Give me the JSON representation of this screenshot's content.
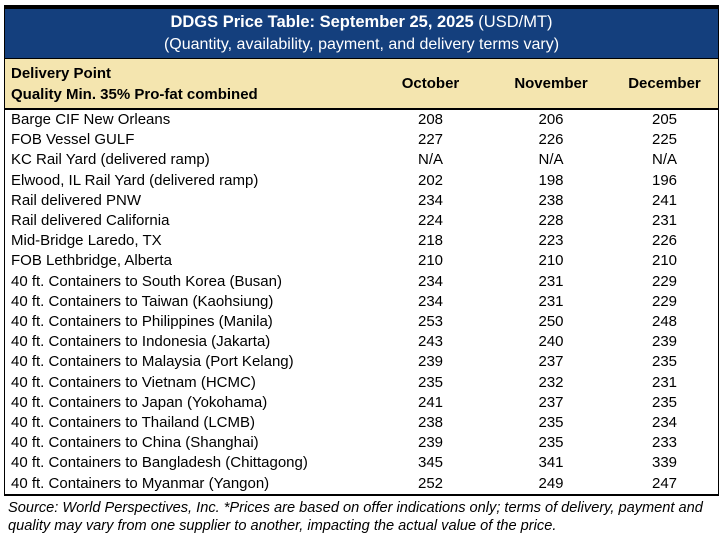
{
  "header": {
    "title_bold": "DDGS Price Table: September 25, 2025",
    "title_regular": " (USD/MT)",
    "subtitle": "(Quantity, availability, payment, and delivery terms vary)"
  },
  "table": {
    "row_header_line1": "Delivery Point",
    "row_header_line2": "Quality Min. 35% Pro-fat combined",
    "columns": [
      "October",
      "November",
      "December"
    ],
    "rows": [
      {
        "label": "Barge CIF New Orleans",
        "values": [
          "208",
          "206",
          "205"
        ]
      },
      {
        "label": "FOB Vessel GULF",
        "values": [
          "227",
          "226",
          "225"
        ]
      },
      {
        "label": "KC Rail Yard (delivered ramp)",
        "values": [
          "N/A",
          "N/A",
          "N/A"
        ]
      },
      {
        "label": "Elwood, IL Rail Yard (delivered ramp)",
        "values": [
          "202",
          "198",
          "196"
        ]
      },
      {
        "label": "Rail delivered PNW",
        "values": [
          "234",
          "238",
          "241"
        ]
      },
      {
        "label": "Rail delivered California",
        "values": [
          "224",
          "228",
          "231"
        ]
      },
      {
        "label": "Mid-Bridge Laredo, TX",
        "values": [
          "218",
          "223",
          "226"
        ]
      },
      {
        "label": "FOB Lethbridge, Alberta",
        "values": [
          "210",
          "210",
          "210"
        ]
      },
      {
        "label": "40 ft. Containers to South Korea (Busan)",
        "values": [
          "234",
          "231",
          "229"
        ]
      },
      {
        "label": "40 ft. Containers to Taiwan (Kaohsiung)",
        "values": [
          "234",
          "231",
          "229"
        ]
      },
      {
        "label": "40 ft. Containers to Philippines (Manila)",
        "values": [
          "253",
          "250",
          "248"
        ]
      },
      {
        "label": "40 ft. Containers to Indonesia (Jakarta)",
        "values": [
          "243",
          "240",
          "239"
        ]
      },
      {
        "label": "40 ft. Containers to Malaysia (Port Kelang)",
        "values": [
          "239",
          "237",
          "235"
        ]
      },
      {
        "label": "40 ft. Containers to Vietnam (HCMC)",
        "values": [
          "235",
          "232",
          "231"
        ]
      },
      {
        "label": "40 ft. Containers to Japan (Yokohama)",
        "values": [
          "241",
          "237",
          "235"
        ]
      },
      {
        "label": "40 ft. Containers to Thailand (LCMB)",
        "values": [
          "238",
          "235",
          "234"
        ]
      },
      {
        "label": "40 ft. Containers to China (Shanghai)",
        "values": [
          "239",
          "235",
          "233"
        ]
      },
      {
        "label": "40 ft. Containers to Bangladesh (Chittagong)",
        "values": [
          "345",
          "341",
          "339"
        ]
      },
      {
        "label": "40 ft. Containers to Myanmar (Yangon)",
        "values": [
          "252",
          "249",
          "247"
        ]
      }
    ]
  },
  "footer": {
    "source_note": "Source: World Perspectives, Inc. *Prices are based on offer indications only; terms of delivery, payment and quality may vary from one supplier to another, impacting the actual value of the price."
  },
  "colors": {
    "title_band_navy": "#143F7D",
    "header_band_tan": "#F4E5AF",
    "border_black": "#000000",
    "title_text_white": "#FFFFFF",
    "body_text_black": "#000000"
  }
}
